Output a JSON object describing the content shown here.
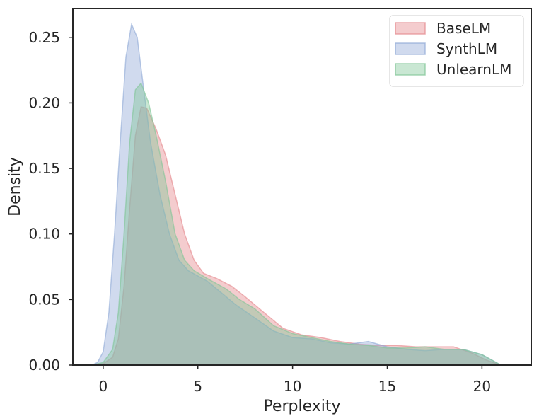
{
  "chart_data": {
    "type": "area",
    "title": "",
    "xlabel": "Perplexity",
    "ylabel": "Density",
    "xlim": [
      -1.6,
      22.6
    ],
    "ylim": [
      0.0,
      0.272
    ],
    "xticks": [
      0,
      5,
      10,
      15,
      20
    ],
    "xtick_labels": [
      "0",
      "5",
      "10",
      "15",
      "20"
    ],
    "yticks": [
      0.0,
      0.05,
      0.1,
      0.15,
      0.2,
      0.25
    ],
    "ytick_labels": [
      "0.00",
      "0.05",
      "0.10",
      "0.15",
      "0.20",
      "0.25"
    ],
    "grid": false,
    "legend": "top-right",
    "series": [
      {
        "name": "BaseLM",
        "color": "#e4868b",
        "points": [
          [
            -0.6,
            0
          ],
          [
            0,
            0.001
          ],
          [
            0.5,
            0.006
          ],
          [
            0.8,
            0.02
          ],
          [
            1.1,
            0.06
          ],
          [
            1.4,
            0.12
          ],
          [
            1.7,
            0.175
          ],
          [
            2.0,
            0.197
          ],
          [
            2.3,
            0.196
          ],
          [
            2.8,
            0.18
          ],
          [
            3.3,
            0.16
          ],
          [
            3.8,
            0.13
          ],
          [
            4.3,
            0.1
          ],
          [
            4.8,
            0.08
          ],
          [
            5.3,
            0.07
          ],
          [
            6.0,
            0.066
          ],
          [
            6.8,
            0.06
          ],
          [
            7.5,
            0.052
          ],
          [
            8.5,
            0.04
          ],
          [
            9.5,
            0.028
          ],
          [
            10.5,
            0.023
          ],
          [
            11.5,
            0.021
          ],
          [
            12.5,
            0.018
          ],
          [
            13.5,
            0.016
          ],
          [
            14.5,
            0.015
          ],
          [
            15.5,
            0.015
          ],
          [
            16.5,
            0.014
          ],
          [
            17.5,
            0.014
          ],
          [
            18.5,
            0.014
          ],
          [
            19.5,
            0.009
          ],
          [
            20.2,
            0.004
          ],
          [
            21.0,
            0
          ]
        ]
      },
      {
        "name": "SynthLM",
        "color": "#8ea8d6",
        "points": [
          [
            -0.6,
            0
          ],
          [
            -0.3,
            0.002
          ],
          [
            0,
            0.01
          ],
          [
            0.3,
            0.04
          ],
          [
            0.6,
            0.1
          ],
          [
            0.9,
            0.17
          ],
          [
            1.2,
            0.235
          ],
          [
            1.5,
            0.26
          ],
          [
            1.8,
            0.25
          ],
          [
            2.1,
            0.215
          ],
          [
            2.5,
            0.17
          ],
          [
            3.0,
            0.13
          ],
          [
            3.5,
            0.1
          ],
          [
            4.0,
            0.08
          ],
          [
            4.5,
            0.072
          ],
          [
            5.0,
            0.068
          ],
          [
            5.5,
            0.064
          ],
          [
            6.0,
            0.058
          ],
          [
            6.5,
            0.052
          ],
          [
            7.0,
            0.046
          ],
          [
            8.0,
            0.036
          ],
          [
            9.0,
            0.026
          ],
          [
            10.0,
            0.021
          ],
          [
            11.0,
            0.02
          ],
          [
            12.0,
            0.017
          ],
          [
            13.0,
            0.016
          ],
          [
            14.0,
            0.018
          ],
          [
            15.0,
            0.014
          ],
          [
            16.0,
            0.012
          ],
          [
            17.0,
            0.011
          ],
          [
            18.0,
            0.012
          ],
          [
            19.0,
            0.012
          ],
          [
            20.0,
            0.008
          ],
          [
            21.0,
            0
          ]
        ]
      },
      {
        "name": "UnlearnLM",
        "color": "#7fc596",
        "points": [
          [
            -0.6,
            0
          ],
          [
            0,
            0.002
          ],
          [
            0.5,
            0.012
          ],
          [
            0.8,
            0.04
          ],
          [
            1.1,
            0.1
          ],
          [
            1.4,
            0.17
          ],
          [
            1.7,
            0.21
          ],
          [
            2.0,
            0.215
          ],
          [
            2.4,
            0.2
          ],
          [
            2.8,
            0.175
          ],
          [
            3.3,
            0.14
          ],
          [
            3.8,
            0.1
          ],
          [
            4.3,
            0.08
          ],
          [
            4.8,
            0.072
          ],
          [
            5.5,
            0.066
          ],
          [
            6.5,
            0.058
          ],
          [
            7.2,
            0.05
          ],
          [
            8.0,
            0.043
          ],
          [
            9.0,
            0.03
          ],
          [
            10.0,
            0.024
          ],
          [
            11.0,
            0.021
          ],
          [
            12.0,
            0.018
          ],
          [
            13.0,
            0.016
          ],
          [
            14.0,
            0.015
          ],
          [
            15.0,
            0.013
          ],
          [
            16.0,
            0.013
          ],
          [
            17.0,
            0.014
          ],
          [
            18.0,
            0.012
          ],
          [
            19.0,
            0.012
          ],
          [
            20.0,
            0.008
          ],
          [
            21.0,
            0
          ]
        ]
      }
    ]
  }
}
